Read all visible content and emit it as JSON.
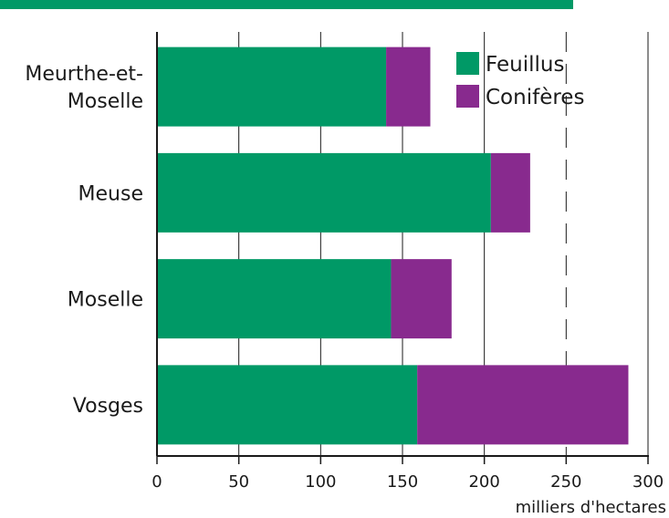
{
  "colors": {
    "header_bar": "#009966",
    "feuillus": "#009966",
    "coniferes": "#882a8e",
    "axis": "#1a1a1a"
  },
  "chart_data": {
    "type": "bar",
    "orientation": "horizontal",
    "stacked": true,
    "categories": [
      [
        "Meurthe-et-",
        "Moselle"
      ],
      [
        "Meuse"
      ],
      [
        "Moselle"
      ],
      [
        "Vosges"
      ]
    ],
    "series": [
      {
        "name": "Feuillus",
        "values": [
          140,
          204,
          143,
          159
        ]
      },
      {
        "name": "Conifères",
        "values": [
          27,
          24,
          37,
          129
        ]
      }
    ],
    "xlim": [
      0,
      300
    ],
    "xticks": [
      0,
      50,
      100,
      150,
      200,
      250,
      300
    ],
    "xlabel": "milliers d'hectares",
    "ylabel": "",
    "title": "",
    "grid": "vertical; solid at 50, 100, 150, 200 and 300, dashed at 250",
    "legend_position": "top-right"
  }
}
